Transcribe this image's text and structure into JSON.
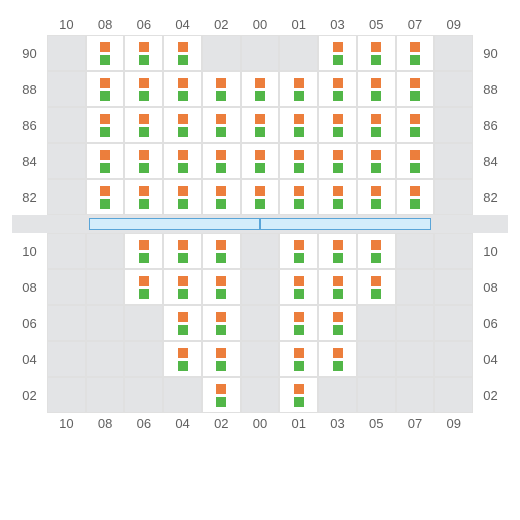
{
  "colors": {
    "orange": "#ec7e3c",
    "green": "#52b648",
    "inactive_bg": "#e3e4e6",
    "active_bg": "#ffffff",
    "border": "#e0e0e0",
    "label": "#606060",
    "divider_fill": "#d4edfb",
    "divider_border": "#5aa5d8"
  },
  "columns": [
    "10",
    "08",
    "06",
    "04",
    "02",
    "00",
    "01",
    "03",
    "05",
    "07",
    "09"
  ],
  "top": {
    "rows": [
      "90",
      "88",
      "86",
      "84",
      "82"
    ],
    "grid": [
      [
        0,
        1,
        1,
        1,
        0,
        0,
        0,
        1,
        1,
        1,
        0
      ],
      [
        0,
        1,
        1,
        1,
        1,
        1,
        1,
        1,
        1,
        1,
        0
      ],
      [
        0,
        1,
        1,
        1,
        1,
        1,
        1,
        1,
        1,
        1,
        0
      ],
      [
        0,
        1,
        1,
        1,
        1,
        1,
        1,
        1,
        1,
        1,
        0
      ],
      [
        0,
        1,
        1,
        1,
        1,
        1,
        1,
        1,
        1,
        1,
        0
      ]
    ]
  },
  "bottom": {
    "rows": [
      "10",
      "08",
      "06",
      "04",
      "02"
    ],
    "grid": [
      [
        0,
        0,
        1,
        1,
        1,
        0,
        1,
        1,
        1,
        0,
        0
      ],
      [
        0,
        0,
        1,
        1,
        1,
        0,
        1,
        1,
        1,
        0,
        0
      ],
      [
        0,
        0,
        0,
        1,
        1,
        0,
        1,
        1,
        0,
        0,
        0
      ],
      [
        0,
        0,
        0,
        1,
        1,
        0,
        1,
        1,
        0,
        0,
        0
      ],
      [
        0,
        0,
        0,
        0,
        1,
        0,
        1,
        0,
        0,
        0,
        0
      ]
    ]
  }
}
